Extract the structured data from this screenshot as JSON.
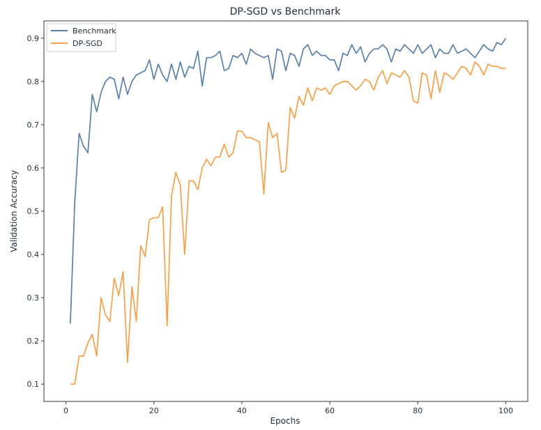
{
  "chart_data": {
    "type": "line",
    "title": "DP-SGD vs Benchmark",
    "xlabel": "Epochs",
    "ylabel": "Validation Accuracy",
    "xlim": [
      -5,
      105
    ],
    "ylim": [
      0.06,
      0.94
    ],
    "xticks": [
      0,
      20,
      40,
      60,
      80,
      100
    ],
    "yticks": [
      0.1,
      0.2,
      0.3,
      0.4,
      0.5,
      0.6,
      0.7,
      0.8,
      0.9
    ],
    "grid": false,
    "legend_position": "top-left",
    "series": [
      {
        "name": "Benchmark",
        "color": "#5b7fa5",
        "x": [
          1,
          2,
          3,
          4,
          5,
          6,
          7,
          8,
          9,
          10,
          11,
          12,
          13,
          14,
          15,
          16,
          17,
          18,
          19,
          20,
          21,
          22,
          23,
          24,
          25,
          26,
          27,
          28,
          29,
          30,
          31,
          32,
          33,
          34,
          35,
          36,
          37,
          38,
          39,
          40,
          41,
          42,
          43,
          44,
          45,
          46,
          47,
          48,
          49,
          50,
          51,
          52,
          53,
          54,
          55,
          56,
          57,
          58,
          59,
          60,
          61,
          62,
          63,
          64,
          65,
          66,
          67,
          68,
          69,
          70,
          71,
          72,
          73,
          74,
          75,
          76,
          77,
          78,
          79,
          80,
          81,
          82,
          83,
          84,
          85,
          86,
          87,
          88,
          89,
          90,
          91,
          92,
          93,
          94,
          95,
          96,
          97,
          98,
          99,
          100
        ],
        "values": [
          0.24,
          0.52,
          0.68,
          0.65,
          0.635,
          0.77,
          0.73,
          0.775,
          0.8,
          0.81,
          0.805,
          0.76,
          0.81,
          0.77,
          0.8,
          0.815,
          0.82,
          0.825,
          0.85,
          0.805,
          0.84,
          0.815,
          0.8,
          0.84,
          0.805,
          0.845,
          0.81,
          0.835,
          0.83,
          0.87,
          0.79,
          0.855,
          0.855,
          0.86,
          0.87,
          0.825,
          0.83,
          0.86,
          0.855,
          0.865,
          0.84,
          0.875,
          0.865,
          0.86,
          0.855,
          0.86,
          0.805,
          0.875,
          0.87,
          0.825,
          0.865,
          0.86,
          0.835,
          0.875,
          0.885,
          0.86,
          0.87,
          0.86,
          0.86,
          0.85,
          0.85,
          0.825,
          0.865,
          0.86,
          0.885,
          0.865,
          0.88,
          0.845,
          0.865,
          0.875,
          0.875,
          0.885,
          0.875,
          0.845,
          0.875,
          0.87,
          0.885,
          0.875,
          0.865,
          0.885,
          0.865,
          0.875,
          0.885,
          0.855,
          0.875,
          0.865,
          0.865,
          0.885,
          0.865,
          0.87,
          0.875,
          0.865,
          0.855,
          0.87,
          0.885,
          0.875,
          0.87,
          0.89,
          0.885,
          0.9
        ]
      },
      {
        "name": "DP-SGD",
        "color": "#f5a04a",
        "x": [
          1,
          2,
          3,
          4,
          5,
          6,
          7,
          8,
          9,
          10,
          11,
          12,
          13,
          14,
          15,
          16,
          17,
          18,
          19,
          20,
          21,
          22,
          23,
          24,
          25,
          26,
          27,
          28,
          29,
          30,
          31,
          32,
          33,
          34,
          35,
          36,
          37,
          38,
          39,
          40,
          41,
          42,
          43,
          44,
          45,
          46,
          47,
          48,
          49,
          50,
          51,
          52,
          53,
          54,
          55,
          56,
          57,
          58,
          59,
          60,
          61,
          62,
          63,
          64,
          65,
          66,
          67,
          68,
          69,
          70,
          71,
          72,
          73,
          74,
          75,
          76,
          77,
          78,
          79,
          80,
          81,
          82,
          83,
          84,
          85,
          86,
          87,
          88,
          89,
          90,
          91,
          92,
          93,
          94,
          95,
          96,
          97,
          98,
          99,
          100
        ],
        "values": [
          0.1,
          0.1,
          0.165,
          0.165,
          0.195,
          0.215,
          0.165,
          0.3,
          0.26,
          0.245,
          0.345,
          0.305,
          0.36,
          0.15,
          0.325,
          0.245,
          0.42,
          0.395,
          0.48,
          0.485,
          0.485,
          0.51,
          0.235,
          0.535,
          0.59,
          0.56,
          0.4,
          0.57,
          0.57,
          0.55,
          0.6,
          0.62,
          0.605,
          0.625,
          0.625,
          0.655,
          0.625,
          0.635,
          0.685,
          0.685,
          0.67,
          0.67,
          0.665,
          0.66,
          0.54,
          0.705,
          0.67,
          0.68,
          0.59,
          0.595,
          0.74,
          0.715,
          0.765,
          0.745,
          0.785,
          0.755,
          0.785,
          0.78,
          0.785,
          0.77,
          0.79,
          0.795,
          0.8,
          0.8,
          0.79,
          0.78,
          0.79,
          0.805,
          0.8,
          0.78,
          0.81,
          0.825,
          0.795,
          0.82,
          0.815,
          0.81,
          0.825,
          0.81,
          0.755,
          0.75,
          0.82,
          0.815,
          0.76,
          0.825,
          0.775,
          0.82,
          0.815,
          0.805,
          0.82,
          0.835,
          0.83,
          0.815,
          0.845,
          0.835,
          0.815,
          0.84,
          0.835,
          0.835,
          0.83,
          0.83
        ]
      }
    ]
  }
}
